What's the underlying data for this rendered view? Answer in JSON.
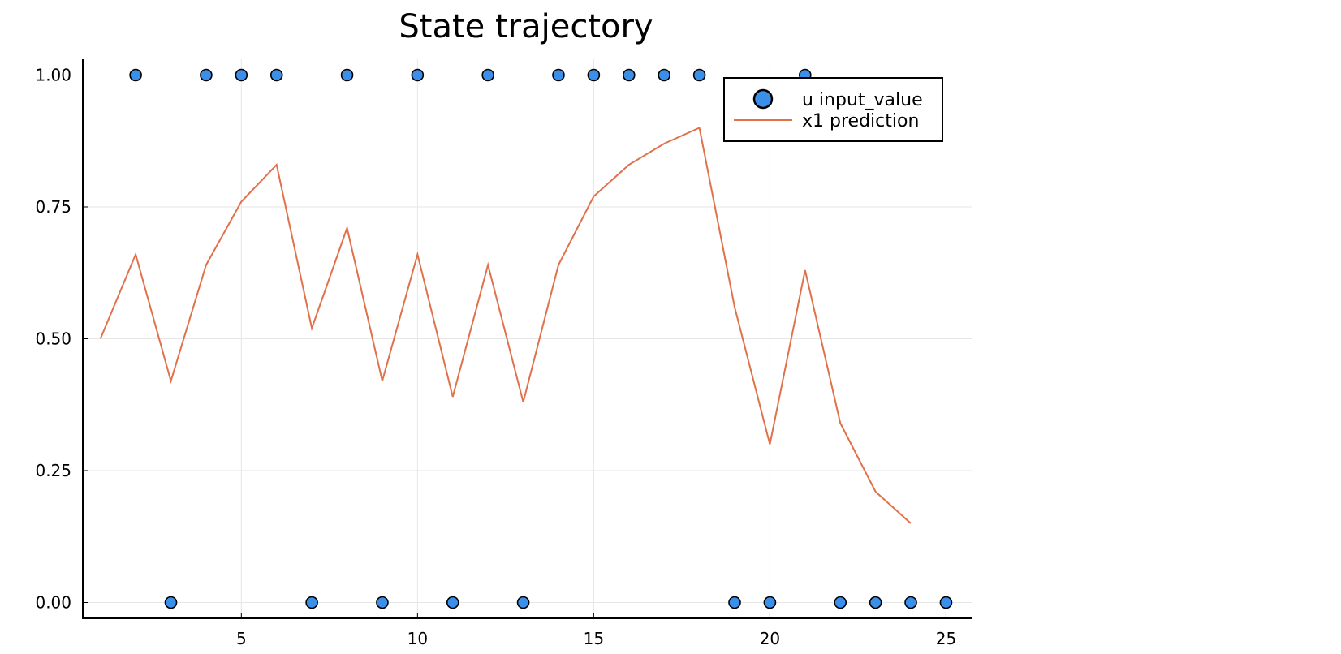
{
  "chart_data": {
    "type": "scatter",
    "title": "State trajectory",
    "xlabel": "",
    "ylabel": "",
    "xlim": [
      0.5,
      25.75
    ],
    "ylim": [
      -0.03,
      1.03
    ],
    "x_ticks": [
      5,
      10,
      15,
      20,
      25
    ],
    "y_ticks": [
      0.0,
      0.25,
      0.5,
      0.75,
      1.0
    ],
    "x_tick_labels": [
      "5",
      "10",
      "15",
      "20",
      "25"
    ],
    "y_tick_labels": [
      "0.00",
      "0.25",
      "0.50",
      "0.75",
      "1.00"
    ],
    "grid": true,
    "legend_position": "top-right",
    "series": [
      {
        "name": "u input_value",
        "kind": "scatter",
        "color": "#3b8fe8",
        "x": [
          2,
          3,
          4,
          5,
          6,
          7,
          8,
          9,
          10,
          11,
          12,
          13,
          14,
          15,
          16,
          17,
          18,
          19,
          20,
          21,
          22,
          23,
          24,
          25
        ],
        "y": [
          1,
          0,
          1,
          1,
          1,
          0,
          1,
          0,
          1,
          0,
          1,
          0,
          1,
          1,
          1,
          1,
          1,
          0,
          0,
          1,
          0,
          0,
          0,
          0
        ]
      },
      {
        "name": "x1 prediction",
        "kind": "line",
        "color": "#e0714a",
        "x": [
          1,
          2,
          3,
          4,
          5,
          6,
          7,
          8,
          9,
          10,
          11,
          12,
          13,
          14,
          15,
          16,
          17,
          18,
          19,
          20,
          21,
          22,
          23,
          24
        ],
        "y": [
          0.5,
          0.66,
          0.42,
          0.64,
          0.76,
          0.83,
          0.52,
          0.71,
          0.42,
          0.66,
          0.39,
          0.64,
          0.38,
          0.64,
          0.77,
          0.83,
          0.87,
          0.9,
          0.56,
          0.3,
          0.63,
          0.34,
          0.21,
          0.15
        ]
      }
    ]
  }
}
